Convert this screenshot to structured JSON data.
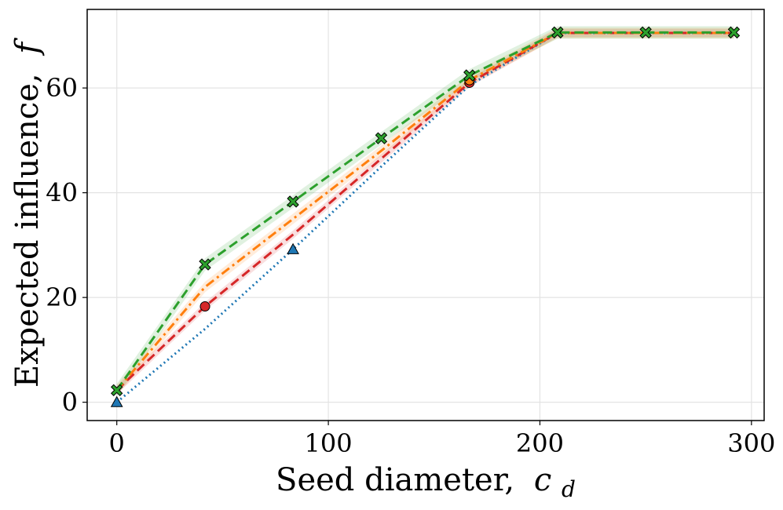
{
  "chart_data": {
    "type": "line",
    "xlabel": "Seed diameter,",
    "xlabel_symbol": "c",
    "xlabel_subscript": "d",
    "ylabel": "Expected influence,",
    "ylabel_symbol": "f",
    "xlim": [
      -14,
      306
    ],
    "ylim": [
      -3.5,
      75
    ],
    "xticks": [
      0,
      100,
      200,
      300
    ],
    "yticks": [
      0,
      20,
      40,
      60
    ],
    "grid": true,
    "legend": "none",
    "series": [
      {
        "color": "#1f77b4",
        "linestyle": "dotted",
        "marker": "triangle",
        "x": [
          0,
          41.7,
          83.3,
          125,
          166.7,
          208.3,
          250,
          291.7
        ],
        "y": [
          0,
          14,
          29.2,
          45,
          60.5,
          70.5,
          70.5,
          70.5
        ],
        "marker_indices": [
          0,
          2
        ],
        "band": 0.0
      },
      {
        "color": "#d62728",
        "linestyle": "dashed",
        "marker": "circle",
        "x": [
          0,
          41.7,
          83.3,
          125,
          166.7,
          208.3,
          250,
          291.7
        ],
        "y": [
          2.3,
          18.3,
          32,
          46.5,
          61,
          70.5,
          70.5,
          70.5
        ],
        "marker_indices": [
          1,
          4
        ],
        "band": 0.8
      },
      {
        "color": "#ff7f0e",
        "linestyle": "dashdot",
        "marker": "circle",
        "x": [
          0,
          41.7,
          83.3,
          125,
          166.7,
          208.3,
          250,
          291.7
        ],
        "y": [
          2.3,
          22,
          35,
          48,
          61.5,
          70.5,
          70.5,
          70.5
        ],
        "marker_indices": [
          4
        ],
        "band": 1.0
      },
      {
        "color": "#2ca02c",
        "linestyle": "dashed",
        "marker": "x",
        "x": [
          0,
          41.7,
          83.3,
          125,
          166.7,
          208.3,
          250,
          291.7
        ],
        "y": [
          2.3,
          26.3,
          38.3,
          50.4,
          62.4,
          70.6,
          70.6,
          70.6
        ],
        "marker_indices": [
          0,
          1,
          2,
          3,
          4,
          5,
          6,
          7
        ],
        "band": 1.2
      }
    ]
  }
}
